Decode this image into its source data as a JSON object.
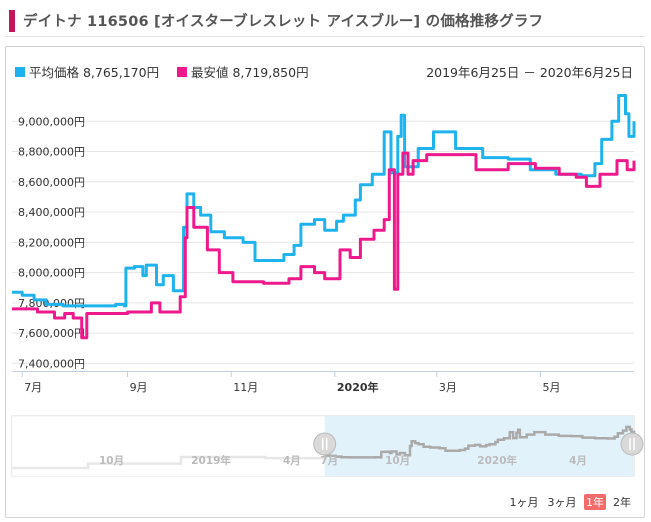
{
  "header": {
    "title": "デイトナ 116506 [オイスターブレスレット アイスブルー] の価格推移グラフ"
  },
  "legend": {
    "average_label": "平均価格 8,765,170円",
    "min_label": "最安値 8,719,850円"
  },
  "date_range": "2019年6月25日 － 2020年6月25日",
  "navigator_labels": [
    "10月",
    "2019年",
    "4月",
    "7月",
    "10月",
    "2020年",
    "4月"
  ],
  "zoom_buttons": [
    "1ヶ月",
    "3ヶ月",
    "1年",
    "2年"
  ],
  "zoom_selected": "1年",
  "colors": {
    "average": "#1eb3ec",
    "min": "#ee1a8d",
    "accent": "#c2185b",
    "zoom_selected_bg": "#f26a6a",
    "navigator_mask": "#e2f2fb"
  },
  "chart_data": {
    "type": "line",
    "x_axis_type": "date",
    "x_ticks": [
      {
        "date": "2019-07-01",
        "label": "7月",
        "bold": false
      },
      {
        "date": "2019-09-01",
        "label": "9月",
        "bold": false
      },
      {
        "date": "2019-11-01",
        "label": "11月",
        "bold": false
      },
      {
        "date": "2020-01-01",
        "label": "2020年",
        "bold": true
      },
      {
        "date": "2020-03-01",
        "label": "3月",
        "bold": false
      },
      {
        "date": "2020-05-01",
        "label": "5月",
        "bold": false
      }
    ],
    "y_ticks": [
      {
        "value": 7400000,
        "label": "7,400,000円"
      },
      {
        "value": 7600000,
        "label": "7,600,000円"
      },
      {
        "value": 7800000,
        "label": "7,800,000円"
      },
      {
        "value": 8000000,
        "label": "8,000,000円"
      },
      {
        "value": 8200000,
        "label": "8,200,000円"
      },
      {
        "value": 8400000,
        "label": "8,400,000円"
      },
      {
        "value": 8600000,
        "label": "8,600,000円"
      },
      {
        "value": 8800000,
        "label": "8,800,000円"
      },
      {
        "value": 9000000,
        "label": "9,000,000円"
      }
    ],
    "xlim": [
      "2019-06-25",
      "2020-06-25"
    ],
    "ylim": [
      7350000,
      9200000
    ],
    "grid": "horizontal",
    "legend_position": "top-left",
    "series": [
      {
        "name": "平均価格",
        "color": "#1eb3ec",
        "points": [
          [
            "2019-06-25",
            7870000
          ],
          [
            "2019-07-01",
            7850000
          ],
          [
            "2019-07-08",
            7820000
          ],
          [
            "2019-07-15",
            7790000
          ],
          [
            "2019-07-25",
            7780000
          ],
          [
            "2019-08-10",
            7780000
          ],
          [
            "2019-08-25",
            7790000
          ],
          [
            "2019-08-30",
            7780000
          ],
          [
            "2019-08-31",
            8030000
          ],
          [
            "2019-09-05",
            8040000
          ],
          [
            "2019-09-10",
            7980000
          ],
          [
            "2019-09-12",
            8050000
          ],
          [
            "2019-09-18",
            7920000
          ],
          [
            "2019-09-22",
            7980000
          ],
          [
            "2019-09-28",
            7880000
          ],
          [
            "2019-10-04",
            8300000
          ],
          [
            "2019-10-06",
            8520000
          ],
          [
            "2019-10-10",
            8430000
          ],
          [
            "2019-10-14",
            8380000
          ],
          [
            "2019-10-20",
            8270000
          ],
          [
            "2019-10-28",
            8230000
          ],
          [
            "2019-11-08",
            8200000
          ],
          [
            "2019-11-15",
            8080000
          ],
          [
            "2019-11-25",
            8080000
          ],
          [
            "2019-12-02",
            8120000
          ],
          [
            "2019-12-08",
            8180000
          ],
          [
            "2019-12-12",
            8320000
          ],
          [
            "2019-12-20",
            8350000
          ],
          [
            "2019-12-26",
            8280000
          ],
          [
            "2020-01-02",
            8340000
          ],
          [
            "2020-01-06",
            8380000
          ],
          [
            "2020-01-13",
            8480000
          ],
          [
            "2020-01-16",
            8580000
          ],
          [
            "2020-01-23",
            8650000
          ],
          [
            "2020-01-30",
            8930000
          ],
          [
            "2020-02-03",
            8660000
          ],
          [
            "2020-02-07",
            8900000
          ],
          [
            "2020-02-09",
            9040000
          ],
          [
            "2020-02-11",
            8700000
          ],
          [
            "2020-02-19",
            8820000
          ],
          [
            "2020-02-28",
            8930000
          ],
          [
            "2020-03-12",
            8820000
          ],
          [
            "2020-03-28",
            8760000
          ],
          [
            "2020-04-12",
            8750000
          ],
          [
            "2020-04-25",
            8680000
          ],
          [
            "2020-05-10",
            8650000
          ],
          [
            "2020-05-25",
            8640000
          ],
          [
            "2020-06-02",
            8720000
          ],
          [
            "2020-06-06",
            8880000
          ],
          [
            "2020-06-12",
            9000000
          ],
          [
            "2020-06-16",
            9170000
          ],
          [
            "2020-06-20",
            9050000
          ],
          [
            "2020-06-22",
            8900000
          ],
          [
            "2020-06-25",
            9000000
          ]
        ]
      },
      {
        "name": "最安値",
        "color": "#ee1a8d",
        "points": [
          [
            "2019-06-25",
            7760000
          ],
          [
            "2019-07-10",
            7740000
          ],
          [
            "2019-07-20",
            7700000
          ],
          [
            "2019-07-26",
            7730000
          ],
          [
            "2019-07-31",
            7700000
          ],
          [
            "2019-08-05",
            7570000
          ],
          [
            "2019-08-08",
            7730000
          ],
          [
            "2019-08-20",
            7730000
          ],
          [
            "2019-09-01",
            7740000
          ],
          [
            "2019-09-10",
            7740000
          ],
          [
            "2019-09-15",
            7800000
          ],
          [
            "2019-09-20",
            7740000
          ],
          [
            "2019-10-02",
            7840000
          ],
          [
            "2019-10-05",
            8230000
          ],
          [
            "2019-10-06",
            8430000
          ],
          [
            "2019-10-10",
            8300000
          ],
          [
            "2019-10-18",
            8150000
          ],
          [
            "2019-10-25",
            8000000
          ],
          [
            "2019-11-02",
            7940000
          ],
          [
            "2019-11-20",
            7930000
          ],
          [
            "2019-12-05",
            7960000
          ],
          [
            "2019-12-12",
            8040000
          ],
          [
            "2019-12-20",
            8000000
          ],
          [
            "2019-12-26",
            7960000
          ],
          [
            "2020-01-04",
            8150000
          ],
          [
            "2020-01-10",
            8100000
          ],
          [
            "2020-01-16",
            8220000
          ],
          [
            "2020-01-24",
            8280000
          ],
          [
            "2020-01-30",
            8350000
          ],
          [
            "2020-02-02",
            8680000
          ],
          [
            "2020-02-05",
            7890000
          ],
          [
            "2020-02-07",
            8650000
          ],
          [
            "2020-02-10",
            8790000
          ],
          [
            "2020-02-13",
            8650000
          ],
          [
            "2020-02-16",
            8740000
          ],
          [
            "2020-02-24",
            8780000
          ],
          [
            "2020-03-12",
            8780000
          ],
          [
            "2020-03-24",
            8680000
          ],
          [
            "2020-04-12",
            8720000
          ],
          [
            "2020-04-28",
            8690000
          ],
          [
            "2020-05-12",
            8650000
          ],
          [
            "2020-05-22",
            8630000
          ],
          [
            "2020-05-28",
            8570000
          ],
          [
            "2020-06-05",
            8650000
          ],
          [
            "2020-06-15",
            8740000
          ],
          [
            "2020-06-21",
            8680000
          ],
          [
            "2020-06-25",
            8740000
          ]
        ]
      }
    ]
  }
}
